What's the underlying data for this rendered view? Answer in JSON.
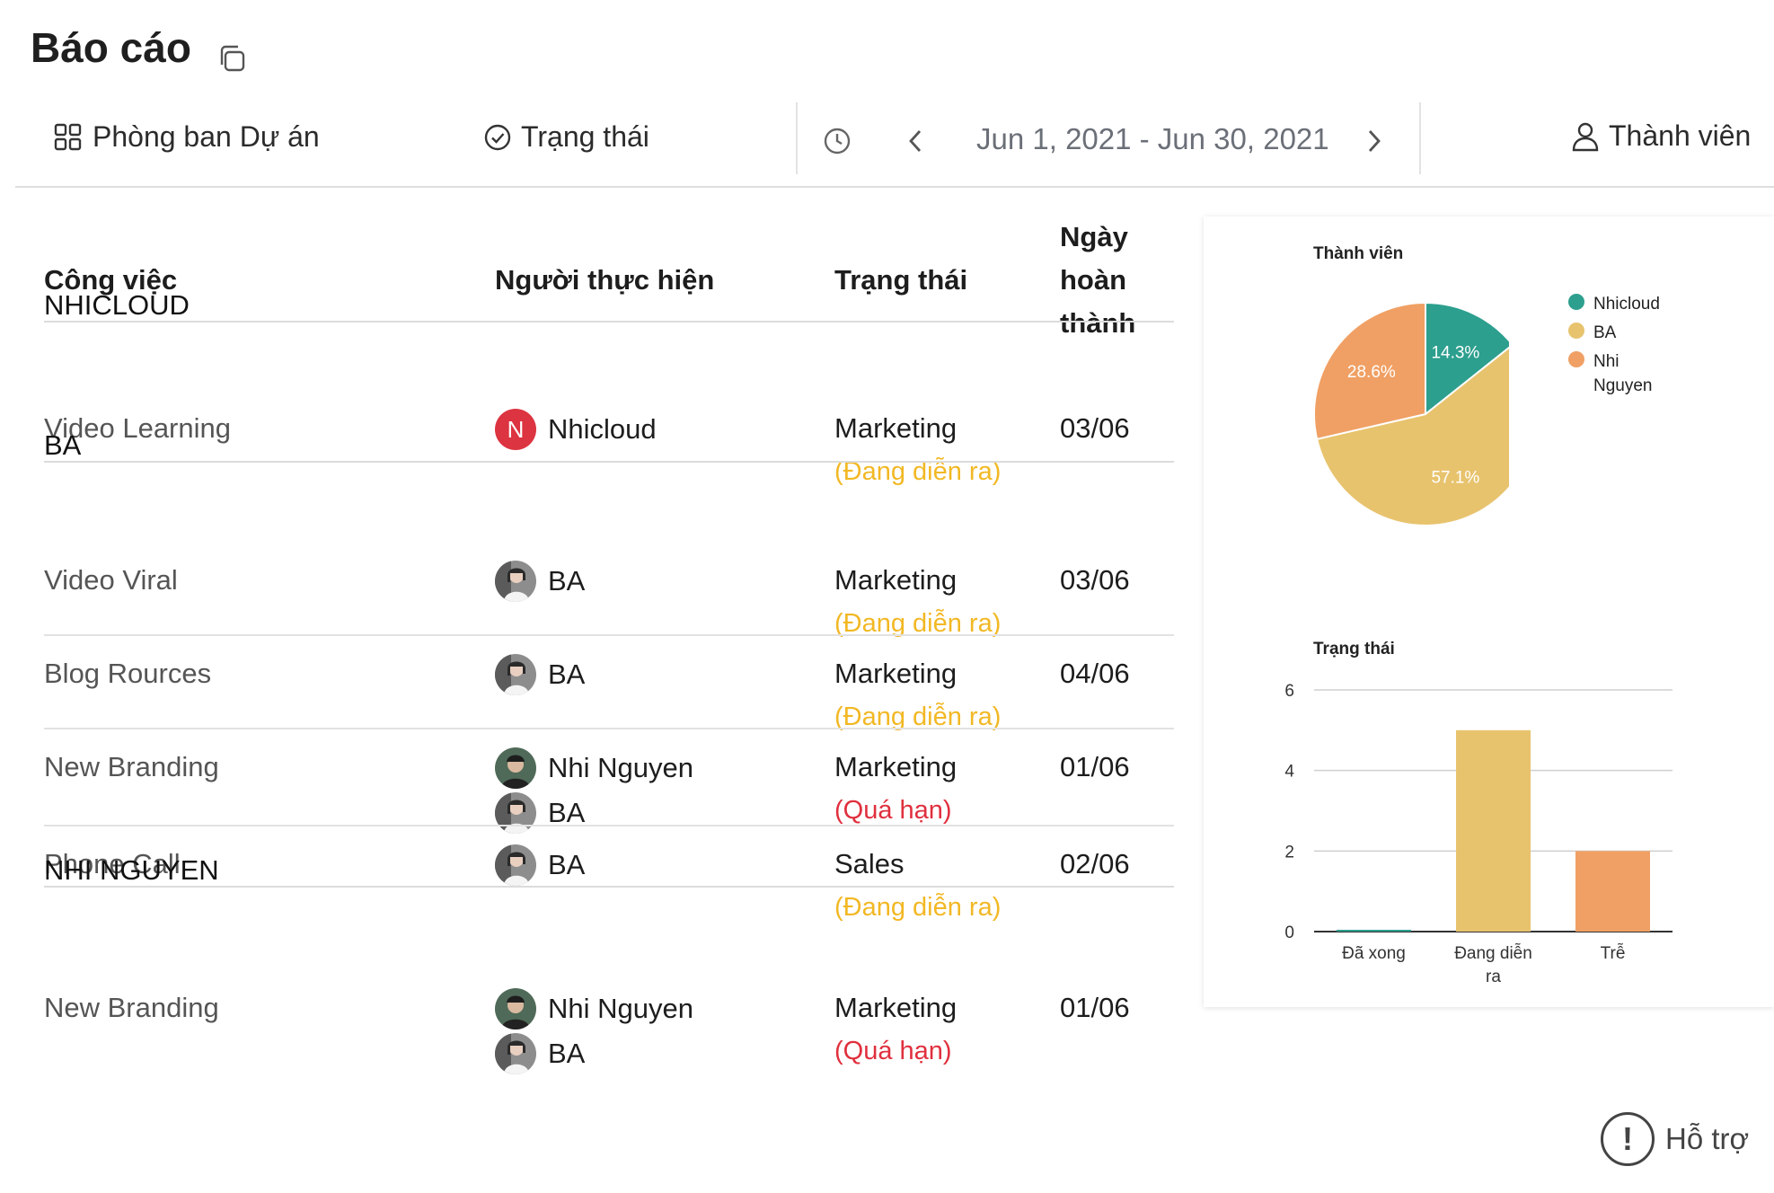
{
  "page": {
    "title": "Báo cáo"
  },
  "toolbar": {
    "department_project": "Phòng ban Dự án",
    "status": "Trạng thái",
    "date_range": "Jun 1, 2021 - Jun 30, 2021",
    "members": "Thành viên"
  },
  "table": {
    "headers": {
      "task": "Công việc",
      "assignee": "Người thực hiện",
      "status": "Trạng thái",
      "due": "Ngày hoàn thành"
    },
    "groups": [
      {
        "name": "NHICLOUD",
        "rows": [
          {
            "task": "Video Learning",
            "assignees": [
              "Nhicloud"
            ],
            "dept": "Marketing",
            "status": "(Đang diễn ra)",
            "date": "03/06"
          }
        ]
      },
      {
        "name": "BA",
        "rows": [
          {
            "task": "Video Viral",
            "assignees": [
              "BA"
            ],
            "dept": "Marketing",
            "status": "(Đang diễn ra)",
            "date": "03/06"
          },
          {
            "task": "Blog Rources",
            "assignees": [
              "BA"
            ],
            "dept": "Marketing",
            "status": "(Đang diễn ra)",
            "date": "04/06"
          },
          {
            "task": "New Branding",
            "assignees": [
              "Nhi Nguyen",
              "BA"
            ],
            "dept": "Marketing",
            "status": "(Quá hạn)",
            "date": "01/06"
          },
          {
            "task": "Phone Call",
            "assignees": [
              "BA"
            ],
            "dept": "Sales",
            "status": "(Đang diễn ra)",
            "date": "02/06"
          }
        ]
      },
      {
        "name": "NHI NGUYEN",
        "rows": [
          {
            "task": "New Branding",
            "assignees": [
              "Nhi Nguyen",
              "BA"
            ],
            "dept": "Marketing",
            "status": "(Quá hạn)",
            "date": "01/06"
          }
        ]
      }
    ],
    "status_colors": {
      "ongoing": "#f2b824",
      "overdue": "#e0303e"
    },
    "avatar_initial": "N"
  },
  "chart_data": [
    {
      "type": "pie",
      "title": "Thành viên",
      "legend_position": "right",
      "slices": [
        {
          "label": "Nhicloud",
          "value": 14.3,
          "color": "#2d9f8e"
        },
        {
          "label": "BA",
          "value": 57.1,
          "color": "#e8c36e"
        },
        {
          "label": "Nhi Nguyen",
          "value": 28.6,
          "color": "#f0a064"
        }
      ],
      "legend_lines": [
        [
          "Nhicloud"
        ],
        [
          "BA"
        ],
        [
          "Nhi",
          "Nguyen"
        ]
      ],
      "labels": [
        "14.3%",
        "57.1%",
        "28.6%"
      ]
    },
    {
      "type": "bar",
      "title": "Trạng thái",
      "categories": [
        "Đã xong",
        "Đang diễn ra",
        "Trễ"
      ],
      "category_lines": [
        [
          "Đã xong"
        ],
        [
          "Đang diễn",
          "ra"
        ],
        [
          "Trễ"
        ]
      ],
      "values": [
        0,
        5,
        2
      ],
      "colors": [
        "#2d9f8e",
        "#e8c36e",
        "#f0a064"
      ],
      "ylim": [
        0,
        6
      ],
      "yticks": [
        0,
        2,
        4,
        6
      ],
      "grid": true
    }
  ],
  "help": {
    "label": "Hỗ trợ"
  }
}
